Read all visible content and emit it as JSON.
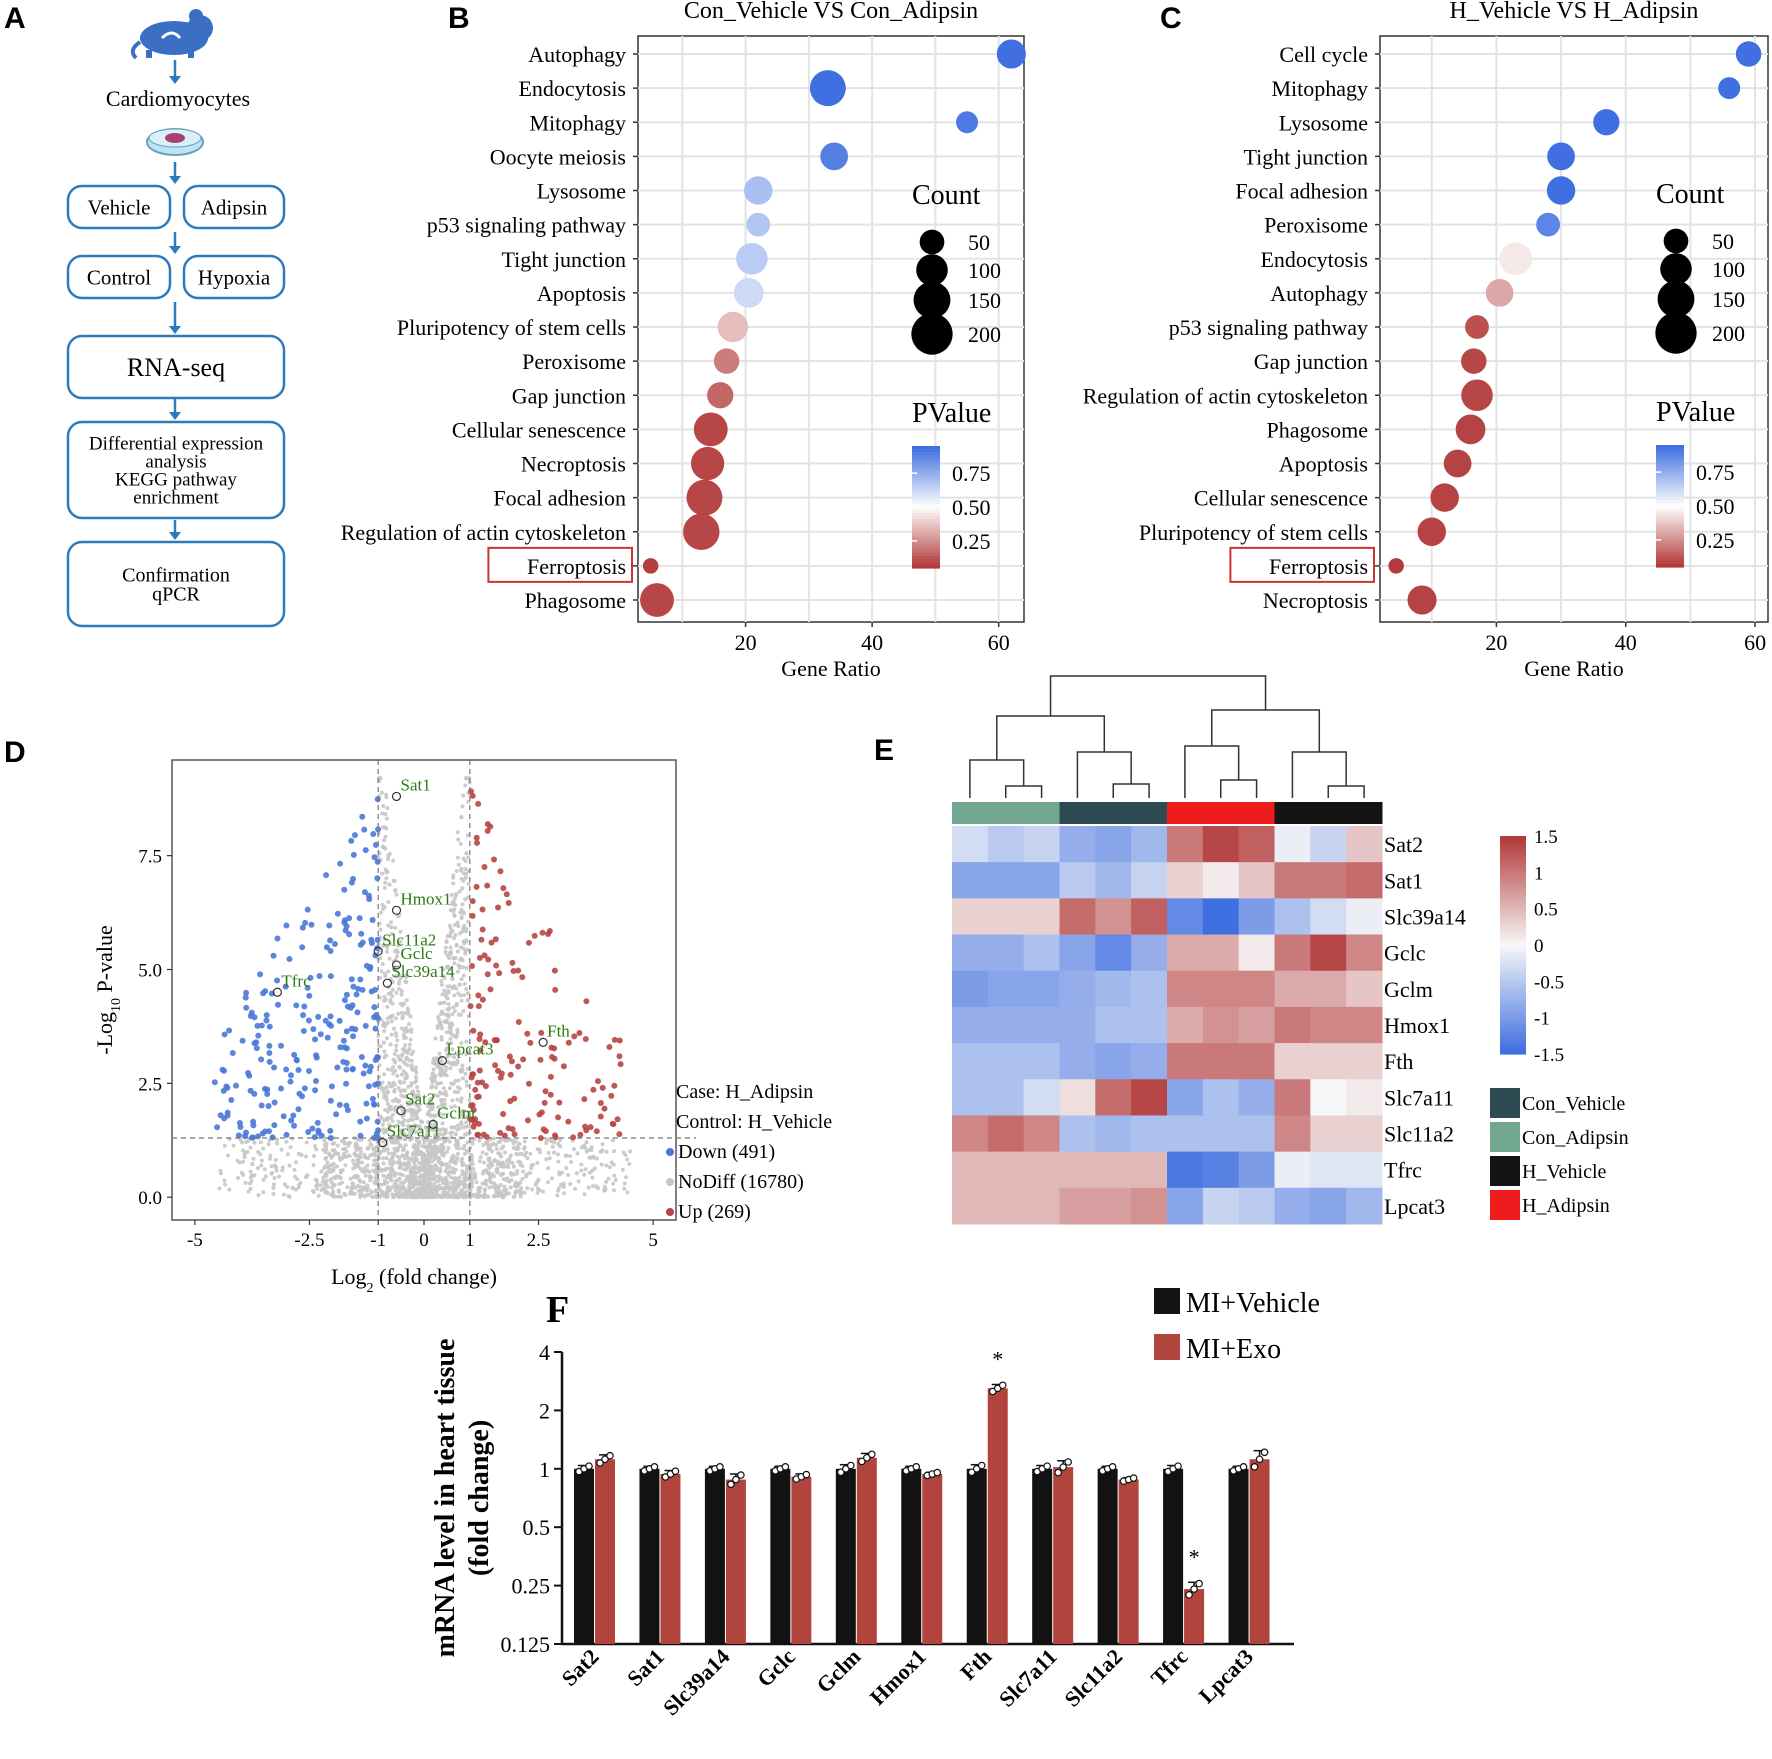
{
  "panel_letters": {
    "A": "A",
    "B": "B",
    "C": "C",
    "D": "D",
    "E": "E",
    "F": "F"
  },
  "flow": {
    "cells_label": "Cardiomyocytes",
    "vehicle": "Vehicle",
    "adipsin": "Adipsin",
    "control": "Control",
    "hypoxia": "Hypoxia",
    "rnaseq": "RNA-seq",
    "diff_lines": [
      "Differential expression",
      "analysis",
      "KEGG pathway",
      "enrichment"
    ],
    "confirm_lines": [
      "Confirmation",
      "qPCR"
    ],
    "accent": "#2c7bbd"
  },
  "colors": {
    "blue": "#3f6fe0",
    "red": "#b23a3a",
    "mid": "#ffffff",
    "con_vehicle": "#2e4a52",
    "con_adipsin": "#72a891",
    "h_vehicle": "#141414",
    "h_adipsin": "#ee1c1c",
    "down": "#4a78d8",
    "nodiff": "#c6c6c6",
    "up": "#b84545",
    "label_green": "#2a7a12",
    "bar_vehicle": "#121212",
    "bar_exo": "#b1443c"
  },
  "chart_data": [
    {
      "id": "B",
      "type": "scatter",
      "title": "Con_Vehicle  VS  Con_Adipsin",
      "xlabel": "Gene Ratio",
      "xticks": [
        20,
        40,
        60
      ],
      "xlim": [
        3,
        64
      ],
      "pathways": [
        "Autophagy",
        "Endocytosis",
        "Mitophagy",
        "Oocyte meiosis",
        "Lysosome",
        "p53 signaling pathway",
        "Tight junction",
        "Apoptosis",
        "Pluripotency of stem cells",
        "Peroxisome",
        "Gap junction",
        "Cellular senescence",
        "Necroptosis",
        "Focal adhesion",
        "Regulation of actin cytoskeleton",
        "Ferroptosis",
        "Phagosome"
      ],
      "gene_ratio": [
        62,
        33,
        55,
        34,
        22,
        22,
        21,
        20.5,
        18,
        17,
        16,
        14.5,
        14,
        13.5,
        13,
        5,
        6
      ],
      "count": [
        80,
        140,
        35,
        70,
        75,
        45,
        100,
        85,
        90,
        55,
        60,
        120,
        115,
        140,
        145,
        10,
        120
      ],
      "pvalue": [
        0.95,
        0.95,
        0.92,
        0.9,
        0.7,
        0.68,
        0.66,
        0.62,
        0.35,
        0.2,
        0.15,
        0.08,
        0.08,
        0.08,
        0.08,
        0.06,
        0.08
      ],
      "highlight": "Ferroptosis",
      "legend": {
        "count_title": "Count",
        "count_sizes": [
          50,
          100,
          150,
          200
        ],
        "pvalue_title": "PValue",
        "pvalue_ticks": [
          "0.75",
          "0.50",
          "0.25"
        ]
      }
    },
    {
      "id": "C",
      "type": "scatter",
      "title": "H_Vehicle  VS  H_Adipsin",
      "xlabel": "Gene Ratio",
      "xticks": [
        20,
        40,
        60
      ],
      "xlim": [
        2,
        62
      ],
      "pathways": [
        "Cell cycle",
        "Mitophagy",
        "Lysosome",
        "Tight junction",
        "Focal adhesion",
        "Peroxisome",
        "Endocytosis",
        "Autophagy",
        "p53 signaling pathway",
        "Gap junction",
        "Regulation of actin cytoskeleton",
        "Phagosome",
        "Apoptosis",
        "Cellular senescence",
        "Pluripotency of stem cells",
        "Ferroptosis",
        "Necroptosis"
      ],
      "gene_ratio": [
        59,
        56,
        37,
        30,
        30,
        28,
        23,
        20.5,
        17,
        16.5,
        17,
        16,
        14,
        12,
        10,
        4.5,
        8.5
      ],
      "count": [
        55,
        35,
        60,
        70,
        75,
        45,
        110,
        70,
        45,
        55,
        100,
        85,
        70,
        75,
        75,
        10,
        80
      ],
      "pvalue": [
        0.97,
        0.97,
        0.95,
        0.95,
        0.95,
        0.88,
        0.45,
        0.3,
        0.1,
        0.08,
        0.08,
        0.07,
        0.07,
        0.07,
        0.07,
        0.05,
        0.07
      ],
      "highlight": "Ferroptosis",
      "legend": {
        "count_title": "Count",
        "count_sizes": [
          50,
          100,
          150,
          200
        ],
        "pvalue_title": "PValue",
        "pvalue_ticks": [
          "0.75",
          "0.50",
          "0.25"
        ]
      }
    },
    {
      "id": "D",
      "type": "scatter",
      "title": "",
      "xlabel": "Log2 (fold change)",
      "ylabel": "-Log10 P-value",
      "xticks": [
        -5,
        -2.5,
        -1,
        0,
        1,
        2.5,
        5
      ],
      "xtick_labels": [
        "-5",
        "-2.5",
        "-1",
        "0",
        "1",
        "2.5",
        "5"
      ],
      "yticks": [
        0,
        2.5,
        5,
        7.5
      ],
      "ytick_labels": [
        "0.0",
        "2.5",
        "5.0",
        "7.5"
      ],
      "xlim": [
        -5.5,
        5.5
      ],
      "ylim": [
        -0.5,
        9.6
      ],
      "thresholds": {
        "x": [
          -1,
          1
        ],
        "y": 1.3
      },
      "labeled_genes": [
        {
          "name": "Sat1",
          "x": -0.6,
          "y": 8.8
        },
        {
          "name": "Hmox1",
          "x": -0.6,
          "y": 6.3
        },
        {
          "name": "Slc11a2",
          "x": -1.0,
          "y": 5.4
        },
        {
          "name": "Gclc",
          "x": -0.6,
          "y": 5.1
        },
        {
          "name": "Tfrc",
          "x": -3.2,
          "y": 4.5
        },
        {
          "name": "Slc39a14",
          "x": -0.8,
          "y": 4.7
        },
        {
          "name": "Fth",
          "x": 2.6,
          "y": 3.4
        },
        {
          "name": "Lpcat3",
          "x": 0.4,
          "y": 3.0
        },
        {
          "name": "Sat2",
          "x": -0.5,
          "y": 1.9
        },
        {
          "name": "Gclm",
          "x": 0.2,
          "y": 1.6
        },
        {
          "name": "Slc7a11",
          "x": -0.9,
          "y": 1.2
        }
      ],
      "legend": {
        "case": "Case: H_Adipsin",
        "control": "Control: H_Vehicle",
        "down": "Down (491)",
        "nodiff": "NoDiff (16780)",
        "up": "Up (269)"
      }
    },
    {
      "id": "E",
      "type": "heatmap",
      "genes": [
        "Sat2",
        "Sat1",
        "Slc39a14",
        "Gclc",
        "Gclm",
        "Hmox1",
        "Fth",
        "Slc7a11",
        "Slc11a2",
        "Tfrc",
        "Lpcat3"
      ],
      "groups": [
        "Con_Adipsin",
        "Con_Adipsin",
        "Con_Adipsin",
        "Con_Vehicle",
        "Con_Vehicle",
        "Con_Vehicle",
        "H_Adipsin",
        "H_Adipsin",
        "H_Adipsin",
        "H_Vehicle",
        "H_Vehicle",
        "H_Vehicle"
      ],
      "values": [
        [
          -0.3,
          -0.5,
          -0.4,
          -0.8,
          -0.9,
          -0.7,
          1.0,
          1.4,
          1.2,
          -0.1,
          -0.4,
          0.4
        ],
        [
          -0.9,
          -0.9,
          -0.9,
          -0.5,
          -0.7,
          -0.4,
          0.3,
          0.1,
          0.4,
          1.0,
          1.0,
          1.1
        ],
        [
          0.3,
          0.3,
          0.3,
          1.1,
          0.8,
          1.2,
          -1.2,
          -1.5,
          -1.0,
          -0.6,
          -0.3,
          -0.1
        ],
        [
          -0.8,
          -0.8,
          -0.6,
          -0.9,
          -1.2,
          -0.8,
          0.6,
          0.6,
          0.1,
          1.0,
          1.4,
          0.9
        ],
        [
          -1.0,
          -0.9,
          -0.9,
          -0.8,
          -0.7,
          -0.6,
          0.9,
          0.9,
          0.9,
          0.6,
          0.6,
          0.4
        ],
        [
          -0.8,
          -0.8,
          -0.8,
          -0.8,
          -0.6,
          -0.6,
          0.6,
          0.8,
          0.7,
          1.0,
          0.9,
          0.9
        ],
        [
          -0.6,
          -0.6,
          -0.6,
          -0.8,
          -0.9,
          -0.8,
          1.0,
          1.0,
          1.0,
          0.3,
          0.3,
          0.3
        ],
        [
          -0.6,
          -0.6,
          -0.3,
          0.2,
          1.1,
          1.4,
          -0.9,
          -0.6,
          -0.8,
          1.0,
          0.0,
          0.1
        ],
        [
          0.9,
          1.1,
          0.9,
          -0.6,
          -0.7,
          -0.6,
          -0.6,
          -0.6,
          -0.6,
          0.9,
          0.3,
          0.3
        ],
        [
          0.5,
          0.5,
          0.5,
          0.5,
          0.5,
          0.5,
          -1.4,
          -1.3,
          -1.0,
          -0.1,
          -0.2,
          -0.2
        ],
        [
          0.5,
          0.5,
          0.5,
          0.7,
          0.7,
          0.8,
          -0.9,
          -0.4,
          -0.5,
          -0.8,
          -0.9,
          -0.7
        ]
      ],
      "colorbar_ticks": [
        "1.5",
        "1",
        "0.5",
        "0",
        "-0.5",
        "-1",
        "-1.5"
      ],
      "colorbar_range": [
        -1.5,
        1.5
      ],
      "legend": [
        "Con_Vehicle",
        "Con_Adipsin",
        "H_Vehicle",
        "H_Adipsin"
      ]
    },
    {
      "id": "F",
      "type": "bar",
      "ylabel_lines": [
        "mRNA level in heart tissue",
        "(fold change)"
      ],
      "ylog2": true,
      "yticks": [
        0.125,
        0.25,
        0.5,
        1,
        2,
        4
      ],
      "ytick_labels": [
        "0.125",
        "0.25",
        "0.5",
        "1",
        "2",
        "4"
      ],
      "ylim": [
        0.125,
        4
      ],
      "categories": [
        "Sat2",
        "Sat1",
        "Slc39a14",
        "Gclc",
        "Gclm",
        "Hmox1",
        "Fth",
        "Slc7a11",
        "Slc11a2",
        "Tfrc",
        "Lpcat3"
      ],
      "series": [
        {
          "name": "MI+Vehicle",
          "values": [
            1.0,
            1.0,
            1.0,
            1.0,
            1.0,
            1.0,
            1.0,
            1.0,
            1.0,
            1.0,
            1.0
          ],
          "err": [
            0.04,
            0.03,
            0.03,
            0.03,
            0.05,
            0.03,
            0.05,
            0.04,
            0.03,
            0.04,
            0.03
          ]
        },
        {
          "name": "MI+Exo",
          "values": [
            1.12,
            0.94,
            0.88,
            0.91,
            1.14,
            0.94,
            2.6,
            1.02,
            0.88,
            0.24,
            1.12
          ],
          "err": [
            0.06,
            0.04,
            0.06,
            0.03,
            0.06,
            0.02,
            0.12,
            0.08,
            0.02,
            0.02,
            0.12
          ]
        }
      ],
      "significance": [
        {
          "category": "Fth",
          "label": "*"
        },
        {
          "category": "Tfrc",
          "label": "*"
        }
      ]
    }
  ]
}
